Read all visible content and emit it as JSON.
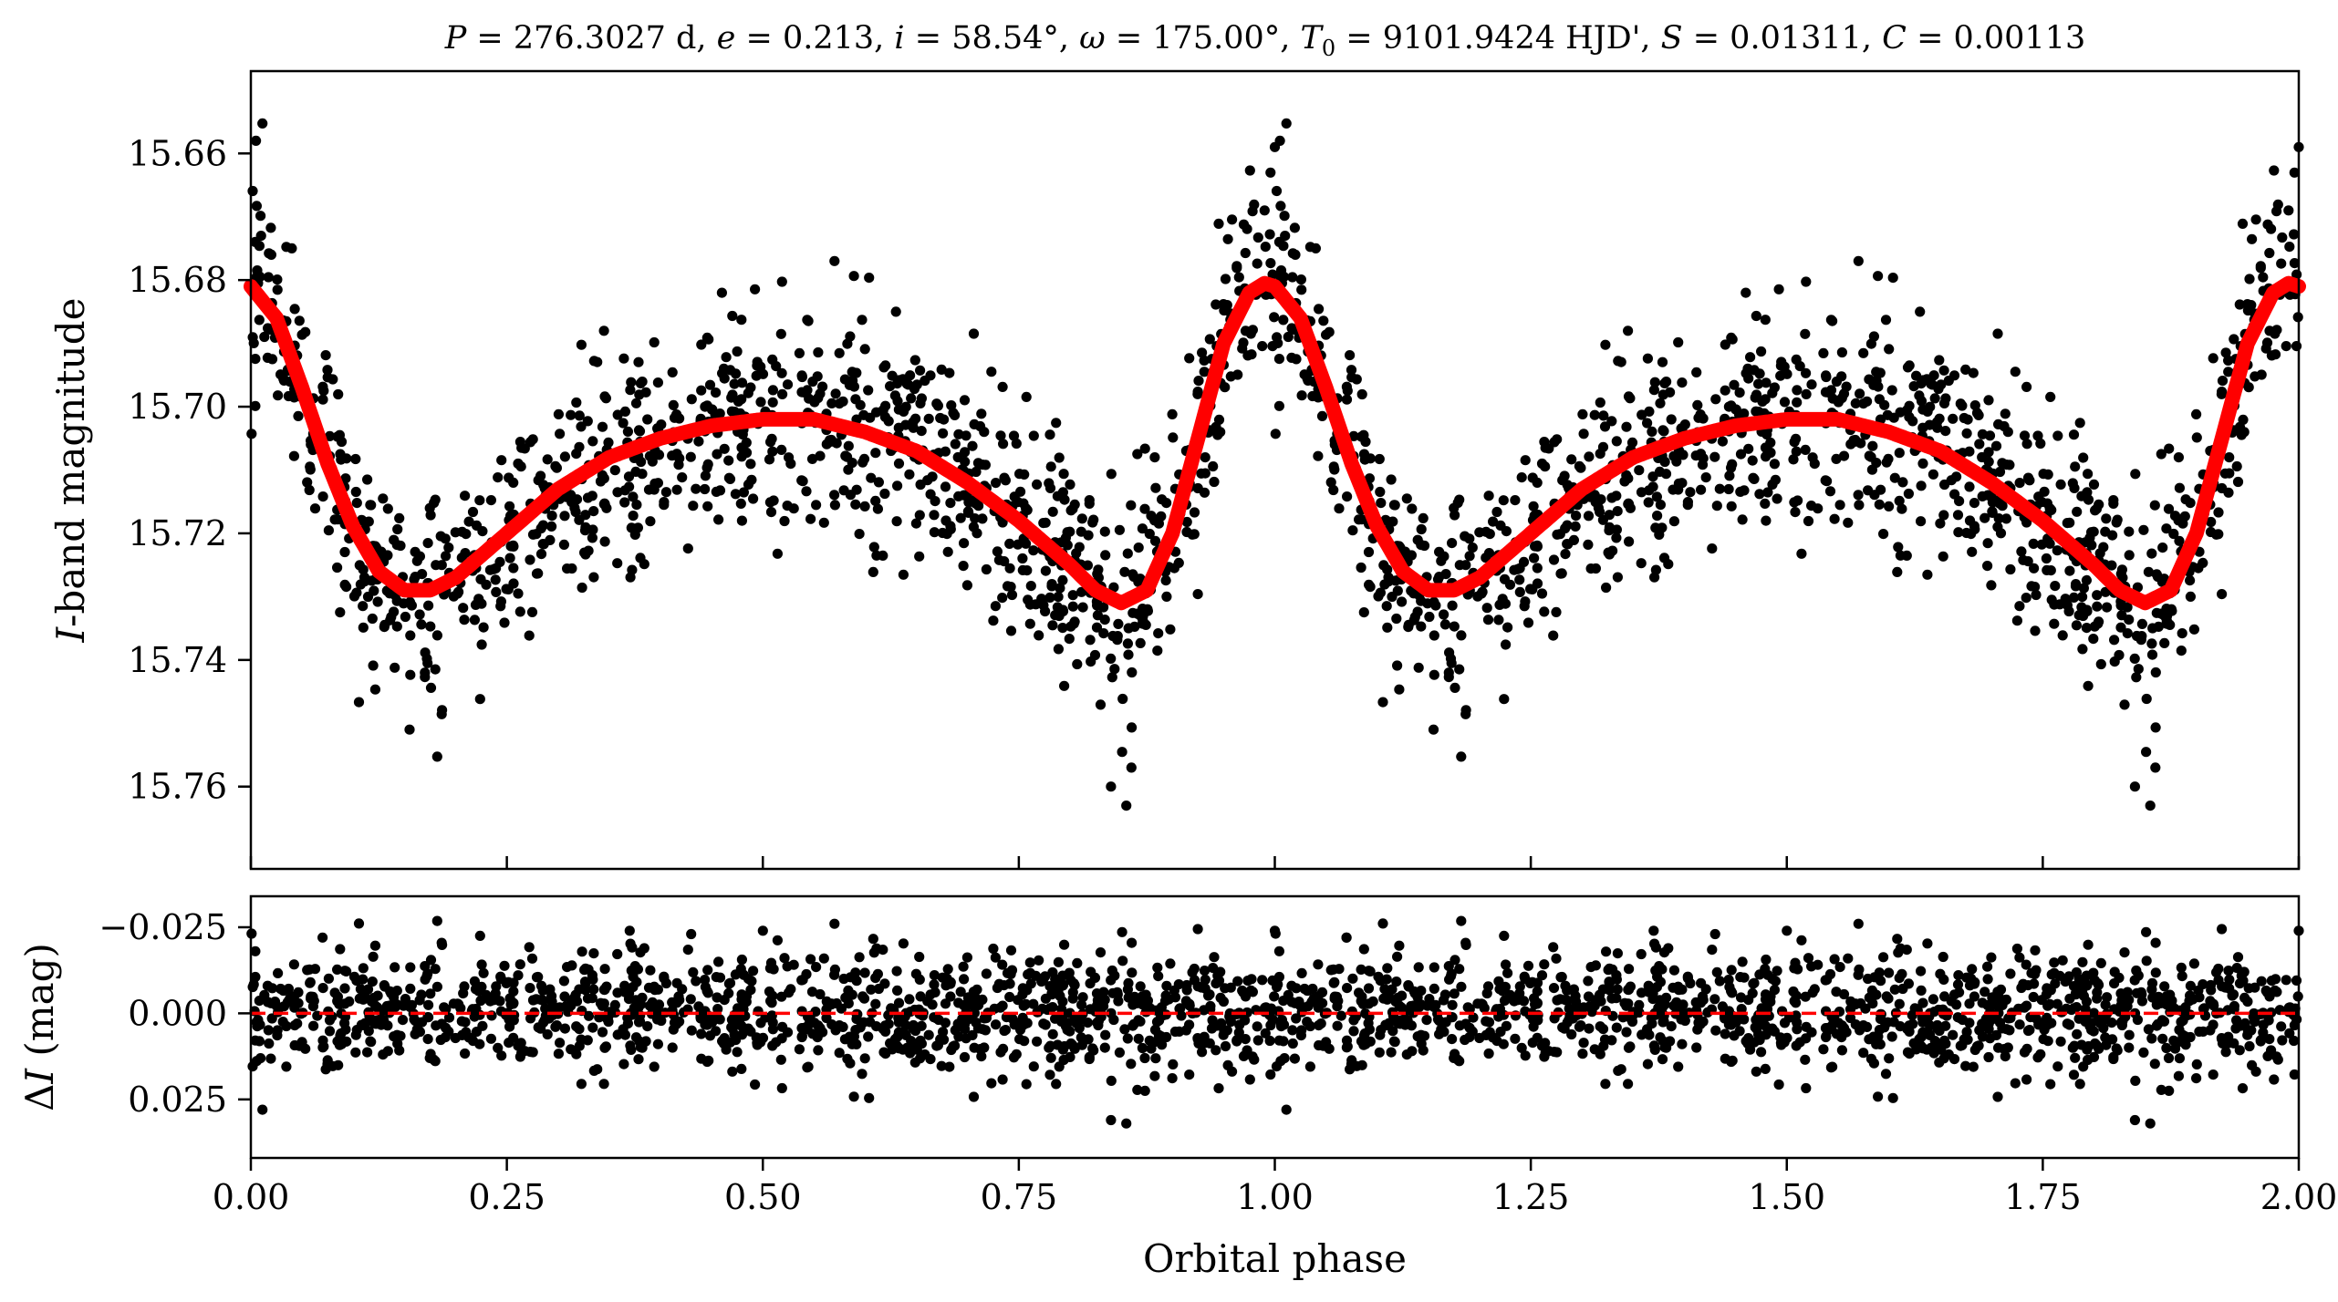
{
  "title_parts": {
    "p_sym": "P",
    "p_val": " = 276.3027 d, ",
    "e_sym": "e",
    "e_val": " = 0.213, ",
    "i_sym": "i",
    "i_val": " = 58.54°, ",
    "w_sym": "ω",
    "w_val": " = 175.00°, ",
    "t_sym": "T",
    "t_sub": "0",
    "t_val": " = 9101.9424 HJD', ",
    "s_sym": "S",
    "s_val": " = 0.01311, ",
    "c_sym": "C",
    "c_val": " = 0.00113"
  },
  "colors": {
    "points": "#000000",
    "model": "#ff0000",
    "zero_line": "#ff0000",
    "axes": "#000000"
  },
  "chart_data": [
    {
      "type": "scatter",
      "panel": "light curve",
      "ylabel_italic": "I",
      "ylabel_rest": "-band magnitude",
      "y_inverted": true,
      "xlim": [
        0.0,
        2.0
      ],
      "ylim": [
        15.647,
        15.773
      ],
      "yticks": [
        "15.66",
        "15.68",
        "15.70",
        "15.72",
        "15.74",
        "15.76"
      ],
      "grid": false,
      "series": [
        {
          "style": "points",
          "period_phase": 1.0,
          "noise_sigma": 0.0085,
          "points_per_cycle": 1100,
          "x": [
            0.005,
            0.01,
            0.02,
            0.04,
            0.155,
            0.17,
            0.46,
            0.57,
            0.63,
            0.84,
            0.855,
            0.86,
            0.99,
            1.0
          ],
          "y": [
            15.658,
            15.673,
            15.676,
            15.675,
            15.751,
            15.742,
            15.682,
            15.677,
            15.685,
            15.76,
            15.763,
            15.757,
            15.669,
            15.659
          ]
        },
        {
          "style": "model_curve",
          "x": [
            0.0,
            0.025,
            0.05,
            0.075,
            0.1,
            0.125,
            0.15,
            0.175,
            0.2,
            0.25,
            0.3,
            0.35,
            0.4,
            0.45,
            0.5,
            0.525,
            0.55,
            0.6,
            0.65,
            0.7,
            0.75,
            0.8,
            0.825,
            0.85,
            0.875,
            0.9,
            0.925,
            0.95,
            0.975,
            0.99,
            1.0
          ],
          "y": [
            15.681,
            15.686,
            15.697,
            15.709,
            15.719,
            15.726,
            15.729,
            15.729,
            15.727,
            15.72,
            15.713,
            15.708,
            15.705,
            15.703,
            15.702,
            15.702,
            15.702,
            15.704,
            15.707,
            15.712,
            15.718,
            15.725,
            15.729,
            15.731,
            15.729,
            15.72,
            15.705,
            15.69,
            15.682,
            15.6805,
            15.681
          ]
        }
      ]
    },
    {
      "type": "scatter",
      "panel": "residuals",
      "xlabel": "Orbital phase",
      "ylabel_prefix": "Δ",
      "ylabel_italic": "I",
      "ylabel_rest": " (mag)",
      "y_inverted": true,
      "xlim": [
        0.0,
        2.0
      ],
      "ylim": [
        -0.034,
        0.042
      ],
      "yticks": [
        "−0.025",
        "0.000",
        "0.025"
      ],
      "xticks": [
        "0.00",
        "0.25",
        "0.50",
        "0.75",
        "1.00",
        "1.25",
        "1.50",
        "1.75",
        "2.00"
      ],
      "grid": false,
      "series": [
        {
          "style": "points",
          "noise_sigma": 0.0085,
          "points_per_cycle": 1100,
          "x": [
            0.07,
            0.37,
            0.43,
            0.5,
            0.57,
            0.84,
            0.855,
            1.0,
            1.07
          ],
          "y": [
            -0.022,
            -0.024,
            -0.023,
            -0.024,
            -0.026,
            0.031,
            0.032,
            -0.024,
            -0.022
          ]
        },
        {
          "style": "zero_line",
          "x": [
            0.0,
            2.0
          ],
          "y": [
            0.0,
            0.0
          ]
        }
      ]
    }
  ]
}
